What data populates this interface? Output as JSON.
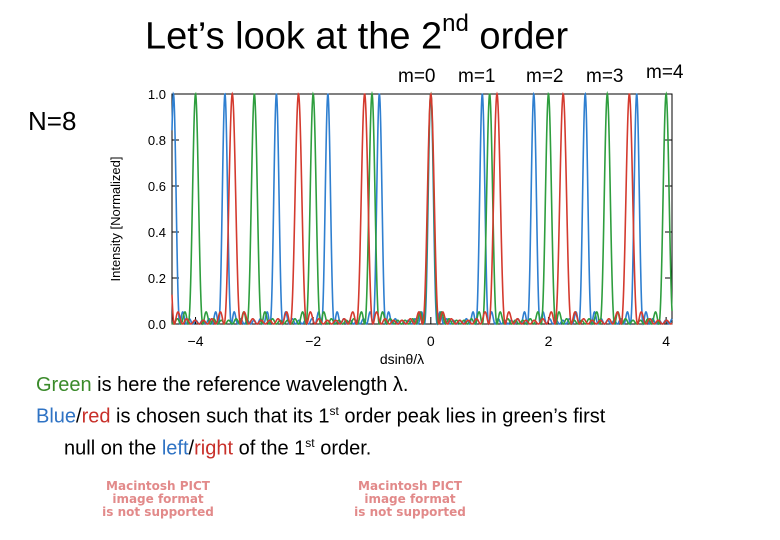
{
  "slide": {
    "title_pre": "Let’s look at the 2",
    "title_sup": "nd",
    "title_post": " order",
    "n_label": "N=8",
    "m_labels": [
      "m=0",
      "m=1",
      "m=2",
      "m=3",
      "m=4"
    ]
  },
  "caption": {
    "line1_green": "Green",
    "line1_rest": " is here the reference wavelength λ.",
    "line2_blue": "Blue",
    "line2_slash": "/",
    "line2_red": "red",
    "line2_a": " is chosen such that its 1",
    "line2_sup": "st",
    "line2_b": " order peak lies in green’s first",
    "line3_a": "null on the ",
    "line3_left": "left",
    "line3_slash": "/",
    "line3_right": "right",
    "line3_b": " of the 1",
    "line3_sup": "st",
    "line3_c": " order."
  },
  "placeholders": {
    "pict_line1": "Macintosh PICT",
    "pict_line2": "image format",
    "pict_line3": "is not supported"
  },
  "chart_data": {
    "type": "line",
    "xlabel": "dsinθ/λ",
    "ylabel": "Intensity [Normalized]",
    "xlim": [
      -4.4,
      4.1
    ],
    "ylim": [
      0,
      1
    ],
    "x_ticks": [
      -4,
      -2,
      0,
      2,
      4
    ],
    "y_ticks": [
      0.0,
      0.2,
      0.4,
      0.6,
      0.8,
      1.0
    ],
    "x_tick_labels": [
      "−4",
      "−2",
      "0",
      "2",
      "4"
    ],
    "y_tick_labels": [
      "0.0",
      "0.2",
      "0.4",
      "0.6",
      "0.8",
      "1.0"
    ],
    "N": 8,
    "series": [
      {
        "color": "#2f7fd0",
        "scale": 0.875,
        "peaks": [
          -4.375,
          -3.5,
          -2.625,
          -1.75,
          -0.875,
          0,
          0.875,
          1.75,
          2.625,
          3.5
        ]
      },
      {
        "color": "#2e9e3e",
        "scale": 1.0,
        "peaks": [
          -4,
          -3,
          -2,
          -1,
          0,
          1,
          2,
          3,
          4
        ]
      },
      {
        "color": "#d43a2e",
        "scale": 1.125,
        "peaks": [
          -3.375,
          -2.25,
          -1.125,
          0,
          1.125,
          2.25,
          3.375
        ]
      }
    ]
  }
}
